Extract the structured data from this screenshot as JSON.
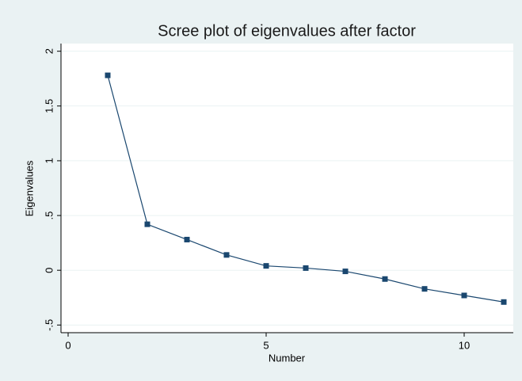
{
  "chart_data": {
    "type": "line",
    "title": "Scree plot of eigenvalues after factor",
    "x_label": "Number",
    "y_label": "Eigenvalues",
    "x": [
      1,
      2,
      3,
      4,
      5,
      6,
      7,
      8,
      9,
      10,
      11
    ],
    "series": [
      {
        "name": "Eigenvalues",
        "color": "#1a476f",
        "values": [
          1.78,
          0.42,
          0.28,
          0.14,
          0.04,
          0.02,
          -0.01,
          -0.08,
          -0.17,
          -0.23,
          -0.29
        ]
      }
    ],
    "xlim": [
      -0.18,
      11.24
    ],
    "xticks": [
      0,
      5,
      10
    ],
    "ylim": [
      -0.57,
      2.07
    ],
    "yticks": [
      {
        "value": -0.5,
        "label": "-.5"
      },
      0,
      {
        "value": 0.5,
        "label": ".5"
      },
      1,
      1.5,
      2
    ],
    "grid": true
  }
}
